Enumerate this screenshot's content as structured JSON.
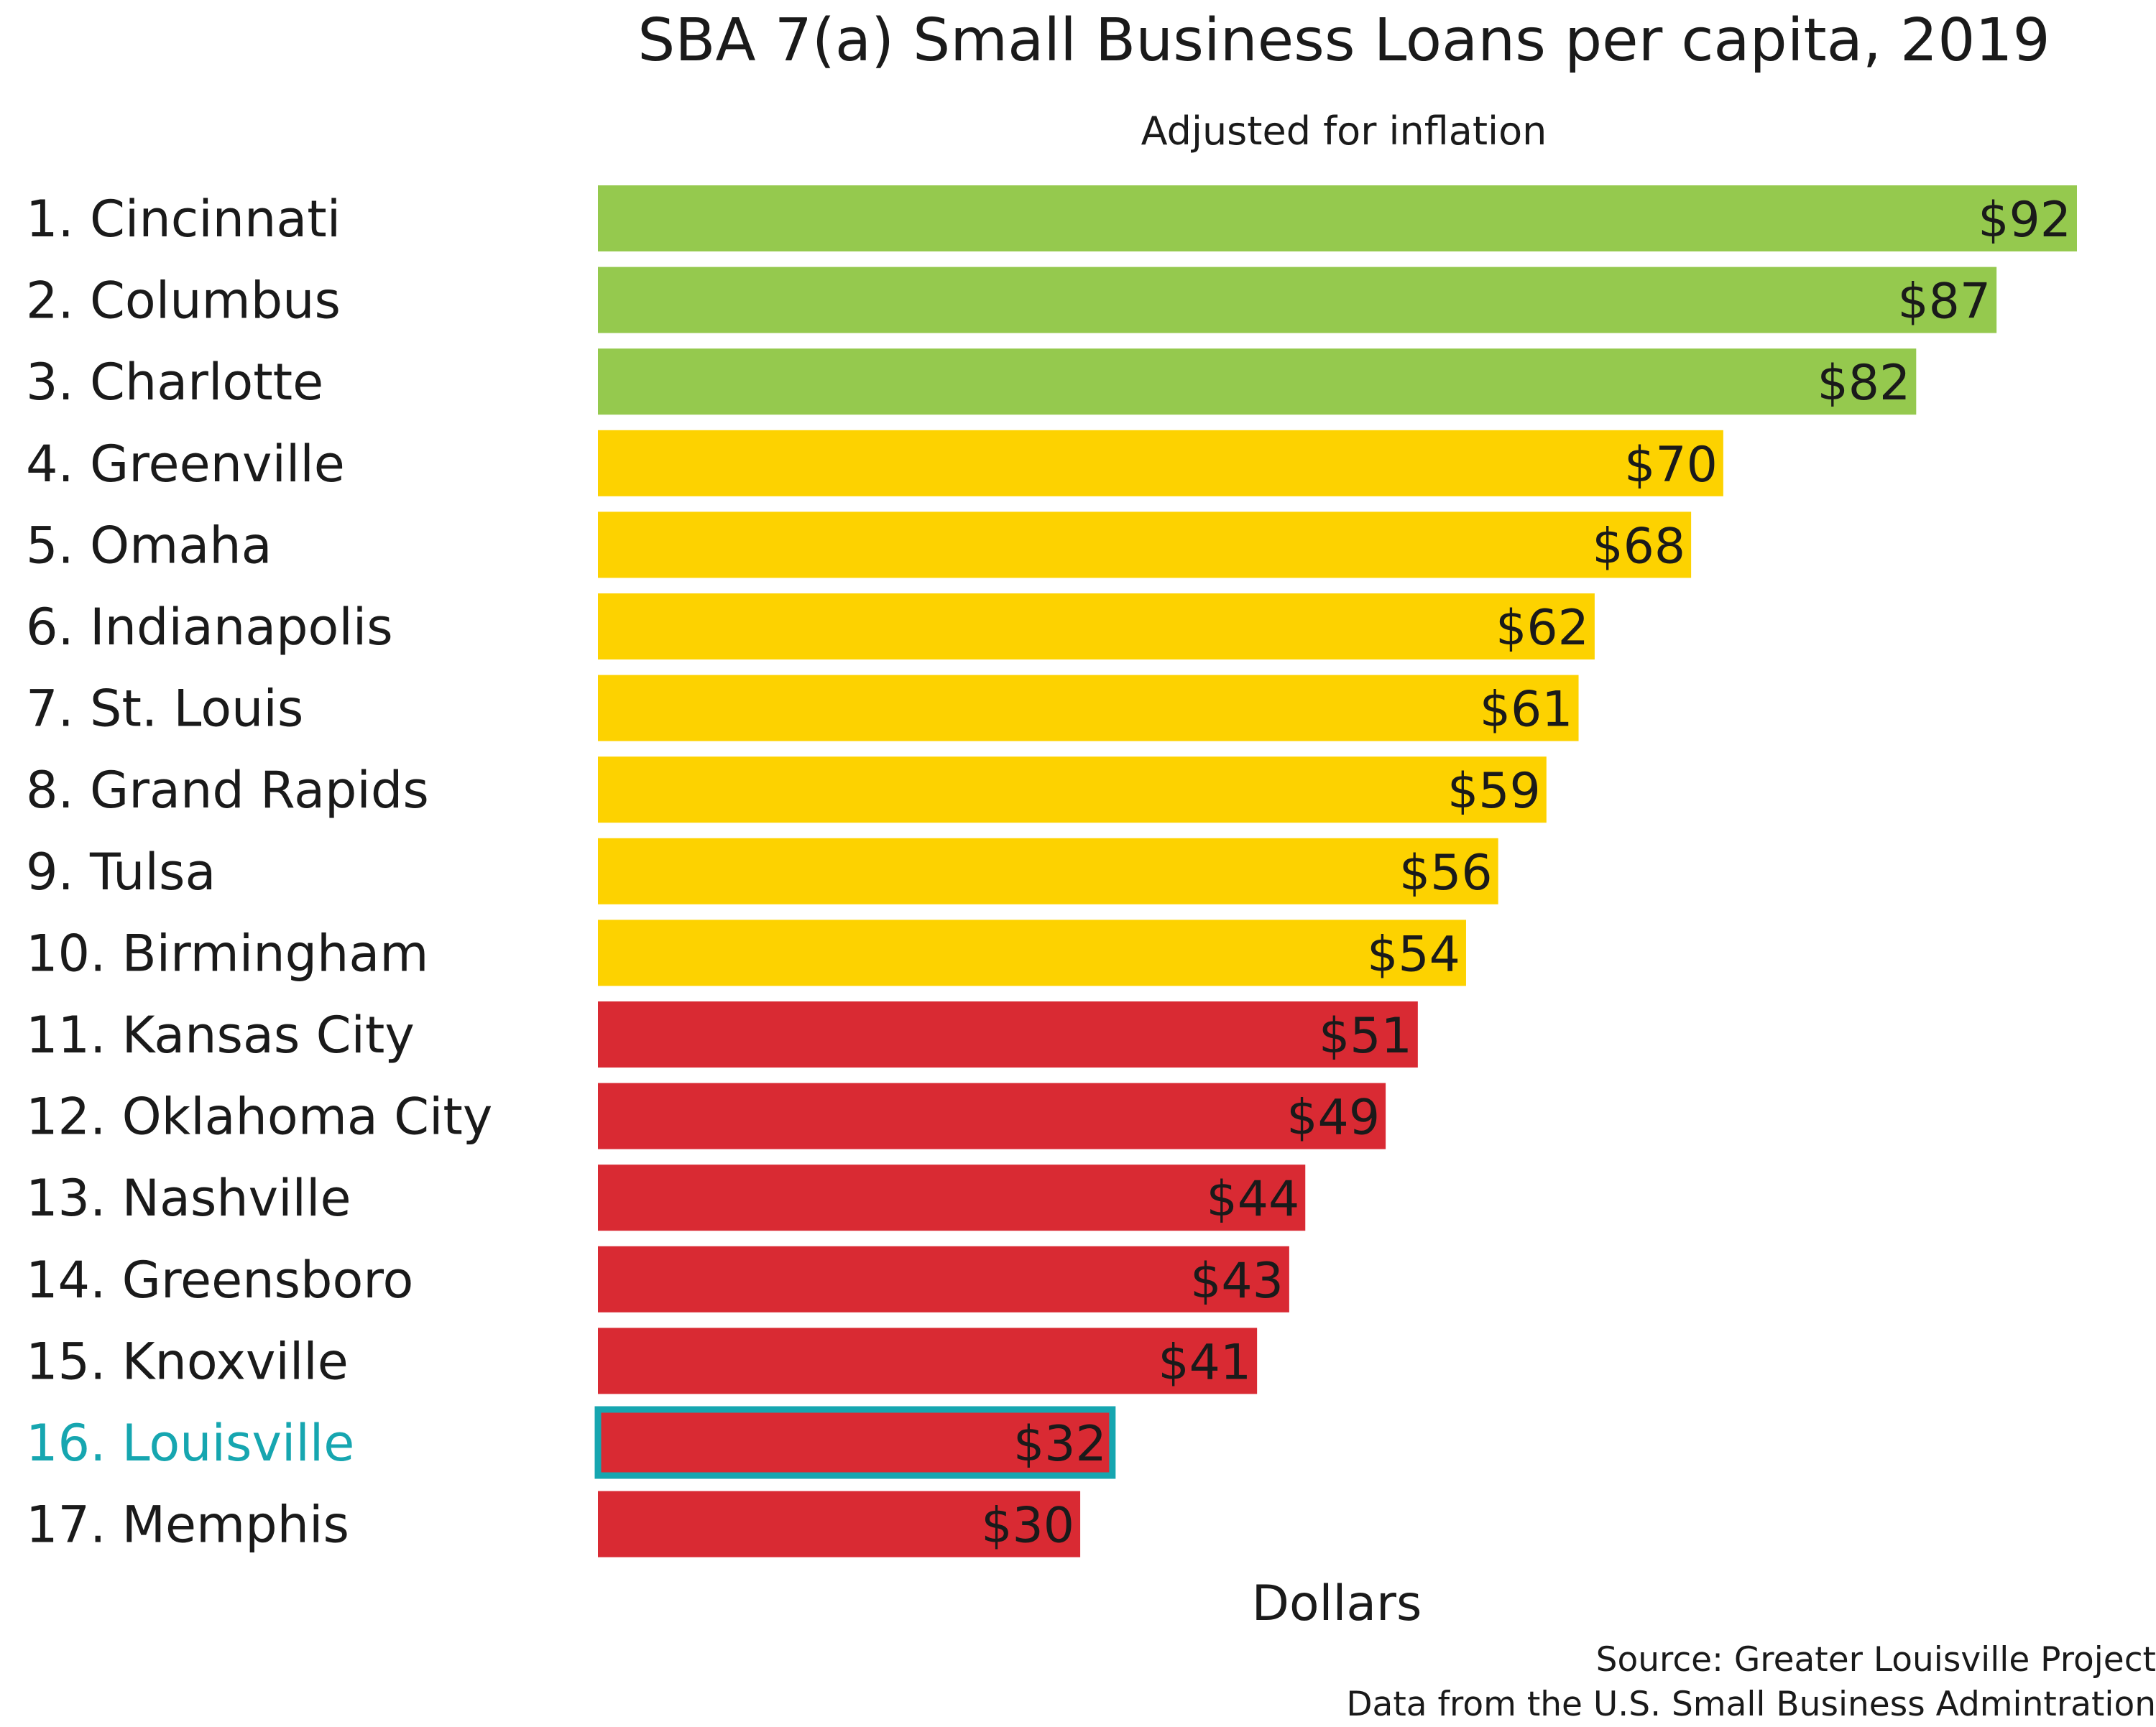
{
  "chart_data": {
    "type": "bar",
    "orientation": "horizontal",
    "title": "SBA 7(a) Small Business Loans per capita, 2019",
    "subtitle": "Adjusted for inflation",
    "xlabel": "Dollars",
    "ylabel": "",
    "categories": [
      "1. Cincinnati",
      "2. Columbus",
      "3. Charlotte",
      "4. Greenville",
      "5. Omaha",
      "6. Indianapolis",
      "7. St. Louis",
      "8. Grand Rapids",
      "9. Tulsa",
      "10. Birmingham",
      "11. Kansas City",
      "12. Oklahoma City",
      "13. Nashville",
      "14. Greensboro",
      "15. Knoxville",
      "16. Louisville",
      "17. Memphis"
    ],
    "values": [
      92,
      87,
      82,
      70,
      68,
      62,
      61,
      59,
      56,
      54,
      51,
      49,
      44,
      43,
      41,
      32,
      30
    ],
    "value_labels": [
      "$92",
      "$87",
      "$82",
      "$70",
      "$68",
      "$62",
      "$61",
      "$59",
      "$56",
      "$54",
      "$51",
      "$49",
      "$44",
      "$43",
      "$41",
      "$32",
      "$30"
    ],
    "xlim": [
      0,
      92
    ],
    "grid": false,
    "colors": {
      "top": "#95c94e",
      "middle": "#fdd200",
      "bottom": "#d92a33",
      "highlight": "#16a6b0",
      "text": "#1a1a1a"
    },
    "color_groups": [
      "top",
      "top",
      "top",
      "middle",
      "middle",
      "middle",
      "middle",
      "middle",
      "middle",
      "middle",
      "bottom",
      "bottom",
      "bottom",
      "bottom",
      "bottom",
      "bottom",
      "bottom"
    ],
    "highlight_index": 15
  },
  "source": {
    "line1": "Source: Greater Louisville Project",
    "line2": "Data from the U.S. Small Business Admintration"
  }
}
